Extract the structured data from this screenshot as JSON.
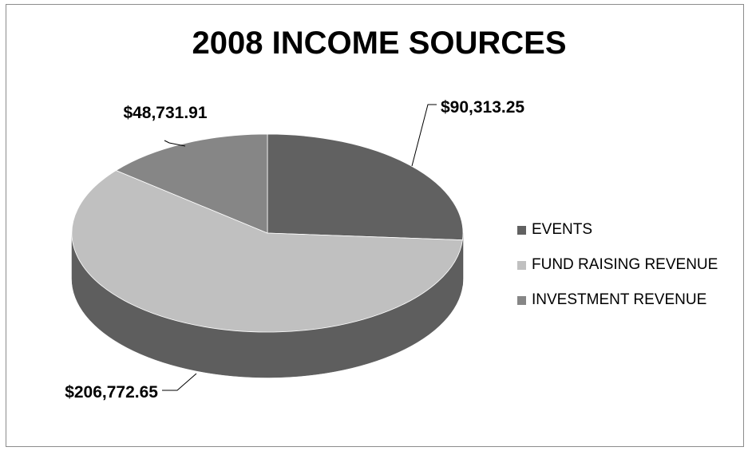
{
  "chart_data": {
    "type": "pie",
    "title": "2008 INCOME SOURCES",
    "categories": [
      "EVENTS",
      "FUND RAISING REVENUE",
      "INVESTMENT REVENUE"
    ],
    "values": [
      90313.25,
      206772.65,
      48731.91
    ],
    "data_labels": [
      "$90,313.25",
      "$206,772.65",
      "$48,731.91"
    ],
    "colors": [
      "#616161",
      "#c0c0c0",
      "#868686"
    ],
    "legend_position": "right",
    "style": "3d"
  }
}
